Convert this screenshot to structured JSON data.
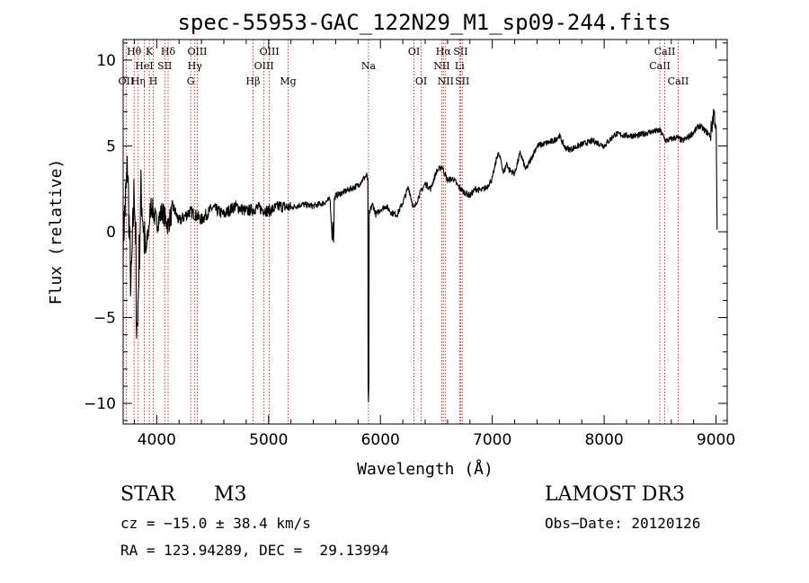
{
  "chart_data": {
    "type": "line",
    "title": "spec-55953-GAC_122N29_M1_sp09-244.fits",
    "xlabel": "Wavelength (Å)",
    "ylabel": "Flux (relative)",
    "xlim": [
      3700,
      9100
    ],
    "ylim": [
      -11.2,
      11.2
    ],
    "xticks": [
      4000,
      5000,
      6000,
      7000,
      8000,
      9000
    ],
    "xtick_labels": [
      "4000",
      "5000",
      "6000",
      "7000",
      "8000",
      "9000"
    ],
    "yticks": [
      -10,
      -5,
      0,
      5,
      10
    ],
    "ytick_labels": [
      "−10",
      "−5",
      "0",
      "5",
      "10"
    ],
    "grid": false,
    "series": [
      {
        "name": "flux",
        "x": [
          3700,
          3740,
          3770,
          3800,
          3830,
          3860,
          3900,
          3950,
          4000,
          4050,
          4100,
          4150,
          4200,
          4300,
          4400,
          4500,
          4600,
          4700,
          4800,
          4860,
          4900,
          5000,
          5100,
          5200,
          5300,
          5400,
          5500,
          5550,
          5570,
          5580,
          5600,
          5700,
          5800,
          5850,
          5880,
          5893,
          5900,
          5910,
          5930,
          5960,
          6000,
          6050,
          6100,
          6150,
          6200,
          6250,
          6300,
          6350,
          6400,
          6450,
          6500,
          6550,
          6600,
          6650,
          6700,
          6750,
          6800,
          6850,
          6900,
          6950,
          7000,
          7050,
          7080,
          7100,
          7130,
          7150,
          7200,
          7250,
          7300,
          7400,
          7500,
          7550,
          7600,
          7650,
          7700,
          7800,
          7900,
          8000,
          8100,
          8200,
          8300,
          8400,
          8500,
          8550,
          8600,
          8650,
          8700,
          8750,
          8800,
          8850,
          8900,
          8950,
          8980,
          9000,
          9010
        ],
        "y": [
          -0.5,
          3.8,
          -3.5,
          2.8,
          -5.0,
          2.5,
          -1.5,
          1.6,
          0.5,
          1.2,
          0.4,
          1.4,
          0.6,
          1.2,
          0.7,
          1.4,
          1.0,
          1.5,
          1.2,
          1.3,
          1.4,
          1.2,
          1.5,
          1.4,
          1.6,
          1.5,
          1.7,
          1.9,
          -0.5,
          1.8,
          2.1,
          2.4,
          2.7,
          3.1,
          3.3,
          2.6,
          0.8,
          1.3,
          1.6,
          1.0,
          1.3,
          1.5,
          1.1,
          1.0,
          1.7,
          2.6,
          1.3,
          2.2,
          2.8,
          2.5,
          3.5,
          3.8,
          3.0,
          3.1,
          2.6,
          2.3,
          2.1,
          2.5,
          2.4,
          2.6,
          3.1,
          4.6,
          4.1,
          3.4,
          4.0,
          3.6,
          3.4,
          4.6,
          3.6,
          5.0,
          5.2,
          5.3,
          5.6,
          4.9,
          4.8,
          5.1,
          5.3,
          5.0,
          5.7,
          5.6,
          5.6,
          5.8,
          5.9,
          5.3,
          5.4,
          5.5,
          5.3,
          5.5,
          5.8,
          6.2,
          5.9,
          5.6,
          7.0,
          6.2,
          0.2
        ]
      }
    ],
    "dips": [
      {
        "x": 5893,
        "y": -9.9
      },
      {
        "x": 3820,
        "y": -6.2
      },
      {
        "x": 5580,
        "y": -0.9
      }
    ],
    "line_markers": [
      {
        "wavelength": 3727,
        "label": "OII",
        "row": 3
      },
      {
        "wavelength": 3798,
        "label": "Hθ",
        "row": 1
      },
      {
        "wavelength": 3835,
        "label": "Hη",
        "row": 3
      },
      {
        "wavelength": 3889,
        "label": "HeI",
        "row": 2
      },
      {
        "wavelength": 3934,
        "label": "K",
        "row": 1
      },
      {
        "wavelength": 3970,
        "label": "H",
        "row": 3
      },
      {
        "wavelength": 4072,
        "label": "SII",
        "row": 2
      },
      {
        "wavelength": 4102,
        "label": "Hδ",
        "row": 1
      },
      {
        "wavelength": 4304,
        "label": "G",
        "row": 3
      },
      {
        "wavelength": 4341,
        "label": "Hγ",
        "row": 2
      },
      {
        "wavelength": 4363,
        "label": "OIII",
        "row": 1
      },
      {
        "wavelength": 4861,
        "label": "Hβ",
        "row": 3
      },
      {
        "wavelength": 4959,
        "label": "OIII",
        "row": 2
      },
      {
        "wavelength": 5007,
        "label": "OIII",
        "row": 1
      },
      {
        "wavelength": 5175,
        "label": "Mg",
        "row": 3
      },
      {
        "wavelength": 5893,
        "label": "Na",
        "row": 2
      },
      {
        "wavelength": 6300,
        "label": "OI",
        "row": 1
      },
      {
        "wavelength": 6364,
        "label": "OI",
        "row": 3
      },
      {
        "wavelength": 6548,
        "label": "NII",
        "row": 2
      },
      {
        "wavelength": 6563,
        "label": "Hα",
        "row": 1
      },
      {
        "wavelength": 6583,
        "label": "NII",
        "row": 3
      },
      {
        "wavelength": 6708,
        "label": "Li",
        "row": 2
      },
      {
        "wavelength": 6717,
        "label": "SII",
        "row": 1
      },
      {
        "wavelength": 6731,
        "label": "SII",
        "row": 3
      },
      {
        "wavelength": 8498,
        "label": "CaII",
        "row": 2
      },
      {
        "wavelength": 8542,
        "label": "CaII",
        "row": 1
      },
      {
        "wavelength": 8662,
        "label": "CaII",
        "row": 3
      }
    ]
  },
  "info": {
    "object_class": "STAR",
    "subclass": "M3",
    "survey": "LAMOST DR3",
    "redshift": "cz = −15.0 ± 38.4 km/s",
    "obs_date": "Obs−Date: 20120126",
    "coords": "RA = 123.94289, DEC =  29.13994"
  },
  "colors": {
    "spectrum": "#000000",
    "marker_line": "#c00000",
    "axis": "#000000",
    "background": "#ffffff"
  }
}
